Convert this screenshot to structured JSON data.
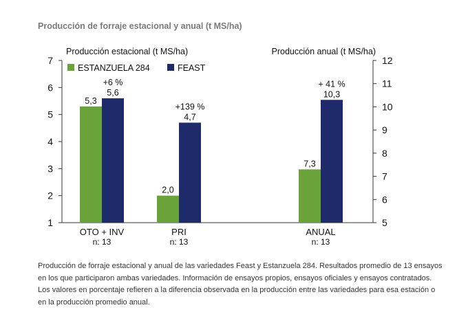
{
  "figure_title": "Producción de forraje estacional y anual (t MS/ha)",
  "caption": "Producción de forraje estacional y anual de las variedades Feast y Estanzuela 284. Resultados promedio de 13 ensayos en los que participaron ambas variedades. Información de ensayos propios, ensayos oficiales y ensayos contratados. Los valores en porcentaje refieren a la diferencia observada en la producción entre las variedades para esa estación o en la producción promedio anual.",
  "colors": {
    "estanzuela": "#6aa33a",
    "feast": "#1f2a6b"
  },
  "chart_data": {
    "type": "bar",
    "left_axis_label": "Producción estacional (t MS/ha)",
    "right_axis_label": "Producción anual (t MS/ha)",
    "left_ylim": [
      1,
      7
    ],
    "left_ticks": [
      1,
      2,
      3,
      4,
      5,
      6,
      7
    ],
    "right_ylim": [
      5,
      12
    ],
    "right_ticks": [
      5,
      6,
      7,
      8,
      9,
      10,
      11,
      12
    ],
    "legend_position": "top-left",
    "groups": [
      {
        "label": "OTO   + INV",
        "n": "n: 13",
        "axis": "left",
        "estanzuela": 5.3,
        "feast": 5.6,
        "estanzuela_label": "5,3",
        "feast_label": "5,6",
        "pct": "+6 %"
      },
      {
        "label": "PRI",
        "n": "n: 13",
        "axis": "left",
        "estanzuela": 2.0,
        "feast": 4.7,
        "estanzuela_label": "2,0",
        "feast_label": "4,7",
        "pct": "+139 %"
      },
      {
        "label": "ANUAL",
        "n": "n: 13",
        "axis": "right",
        "estanzuela": 7.3,
        "feast": 10.3,
        "estanzuela_label": "7,3",
        "feast_label": "10,3",
        "pct": "+ 41 %"
      }
    ],
    "series": [
      {
        "name": "ESTANZUELA 284",
        "key": "estanzuela"
      },
      {
        "name": "FEAST",
        "key": "feast"
      }
    ]
  }
}
